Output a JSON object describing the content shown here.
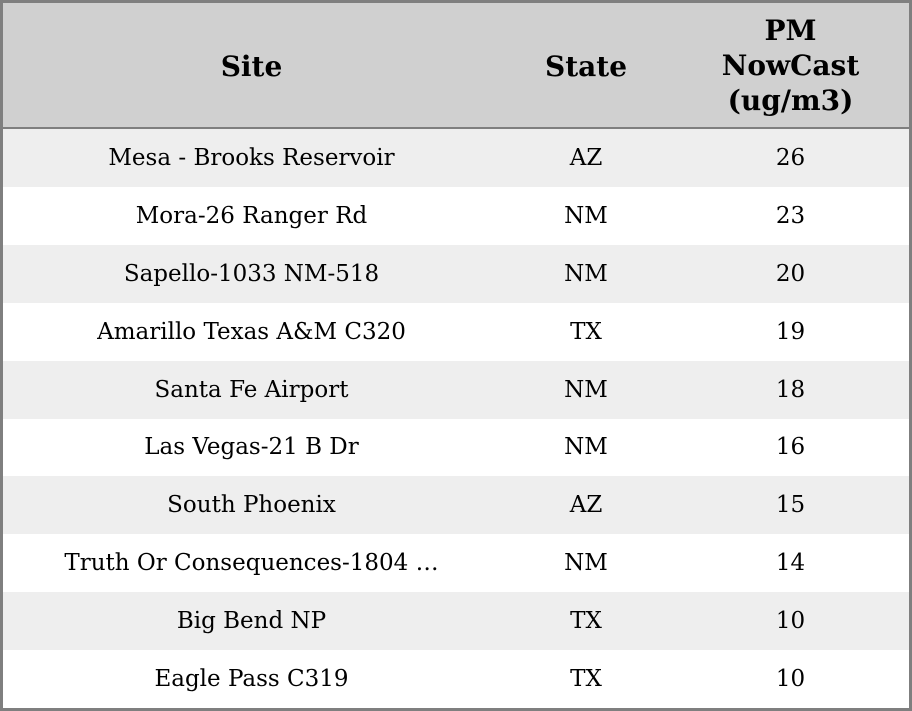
{
  "chart_data": {
    "type": "table",
    "title": "",
    "columns": [
      {
        "key": "site",
        "label": "Site"
      },
      {
        "key": "state",
        "label": "State"
      },
      {
        "key": "pm",
        "label": "PM NowCast (ug/m3)"
      }
    ],
    "rows": [
      {
        "site": "Mesa - Brooks Reservoir",
        "state": "AZ",
        "pm": 26
      },
      {
        "site": "Mora-26 Ranger Rd",
        "state": "NM",
        "pm": 23
      },
      {
        "site": "Sapello-1033 NM-518",
        "state": "NM",
        "pm": 20
      },
      {
        "site": "Amarillo Texas A&M C320",
        "state": "TX",
        "pm": 19
      },
      {
        "site": "Santa Fe Airport",
        "state": "NM",
        "pm": 18
      },
      {
        "site": "Las Vegas-21 B Dr",
        "state": "NM",
        "pm": 16
      },
      {
        "site": "South Phoenix",
        "state": "AZ",
        "pm": 15
      },
      {
        "site": "Truth Or Consequences-1804 …",
        "state": "NM",
        "pm": 14
      },
      {
        "site": "Big Bend NP",
        "state": "TX",
        "pm": 10
      },
      {
        "site": "Eagle Pass C319",
        "state": "TX",
        "pm": 10
      }
    ],
    "layout": {
      "striped": true,
      "header_position": "top",
      "alignment": "center"
    }
  },
  "colors": {
    "border": "#7f7f7f",
    "header_bg": "#d0d0d0",
    "row_odd_bg": "#eeeeee",
    "row_even_bg": "#ffffff",
    "text": "#000000"
  }
}
